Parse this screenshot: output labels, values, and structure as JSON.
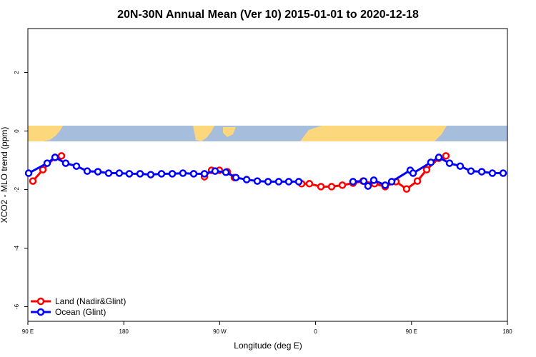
{
  "chart_data": {
    "type": "line",
    "title": "20N-30N Annual Mean (Ver 10)   2015-01-01 to 2020-12-18",
    "x_label": "Longitude (deg E)",
    "y_label": "XCO2 - MLO trend (ppm)",
    "xlim": [
      90,
      540
    ],
    "ylim": [
      -6.5,
      3.5
    ],
    "xticks": [
      {
        "value": 90,
        "label": "90 E"
      },
      {
        "value": 180,
        "label": "180"
      },
      {
        "value": 270,
        "label": "90 W"
      },
      {
        "value": 360,
        "label": "0"
      },
      {
        "value": 450,
        "label": "90 E"
      },
      {
        "value": 540,
        "label": "180"
      }
    ],
    "yticks": [
      2,
      0,
      -2,
      -4,
      -6
    ],
    "legend": "bottom-left",
    "series": [
      {
        "name": "Land (Nadir&Glint)",
        "color": "#ff0000",
        "x": [
          94.7,
          104.1,
          115.5,
          121.5,
          null,
          255.7,
          262.4,
          269.7,
          277.1,
          283.8,
          null,
          346.9,
          354.2,
          365.0,
          375.0,
          385.1,
          395.1,
          404.5,
          415.3,
          425.3,
          435.4,
          445.4,
          455.5,
          464.2,
          475.6,
          482.3
        ],
        "values": [
          -1.71,
          -1.32,
          -0.9,
          -0.85,
          null,
          -1.56,
          -1.34,
          -1.34,
          -1.39,
          -1.59,
          null,
          -1.8,
          -1.8,
          -1.9,
          -1.9,
          -1.85,
          -1.78,
          -1.71,
          -1.8,
          -1.9,
          -1.73,
          -1.98,
          -1.71,
          -1.32,
          -0.93,
          -0.85
        ]
      },
      {
        "name": "Ocean (Glint)",
        "color": "#0000ff",
        "x": [
          90.7,
          108.1,
          115.5,
          125.5,
          135.6,
          145.7,
          155.7,
          165.8,
          175.8,
          185.2,
          195.3,
          205.3,
          215.4,
          225.5,
          235.5,
          245.6,
          255.7,
          265.7,
          275.8,
          285.2,
          295.3,
          305.3,
          315.4,
          325.4,
          334.8,
          344.2,
          null,
          395.1,
          405.2,
          409.2,
          414.6,
          425.3,
          431.4,
          448.8,
          451.5,
          468.2,
          475.6,
          485.7,
          495.7,
          505.8,
          515.9,
          525.9,
          536.0
        ],
        "values": [
          -1.44,
          -1.1,
          -0.9,
          -1.1,
          -1.2,
          -1.37,
          -1.39,
          -1.44,
          -1.44,
          -1.46,
          -1.46,
          -1.49,
          -1.46,
          -1.46,
          -1.44,
          -1.46,
          -1.46,
          -1.37,
          -1.41,
          -1.59,
          -1.66,
          -1.71,
          -1.73,
          -1.73,
          -1.73,
          -1.73,
          null,
          -1.73,
          -1.71,
          -1.88,
          -1.68,
          -1.85,
          -1.73,
          -1.34,
          -1.44,
          -1.07,
          -0.9,
          -1.1,
          -1.2,
          -1.37,
          -1.39,
          -1.44,
          -1.44
        ]
      }
    ]
  }
}
